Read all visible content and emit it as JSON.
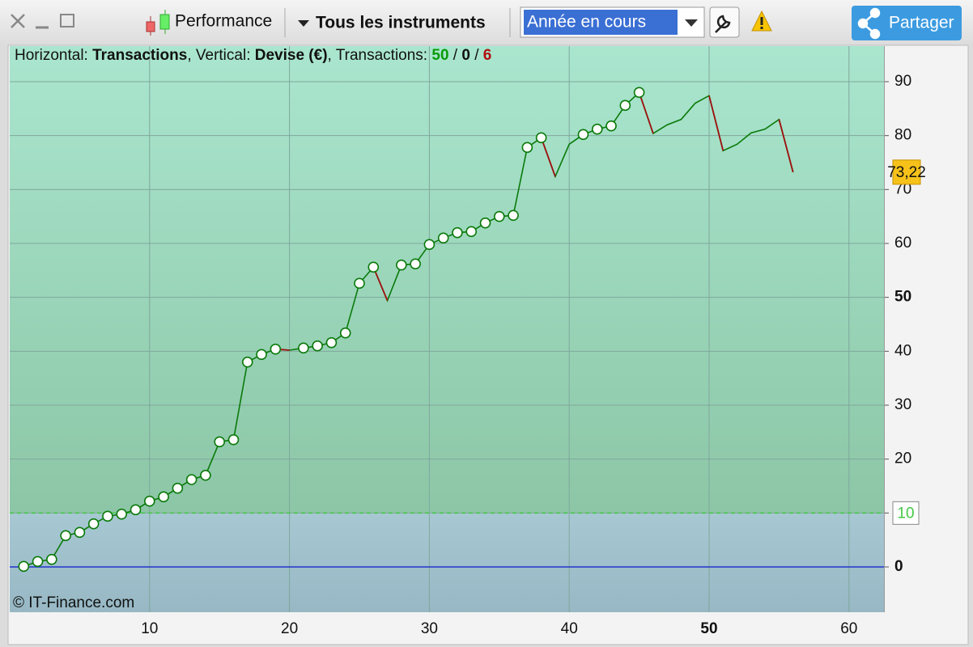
{
  "toolbar": {
    "performance": "Performance",
    "instruments": "Tous les instruments",
    "period": "Année en cours",
    "share": "Partager"
  },
  "chart_data": {
    "type": "line",
    "header": {
      "h_prefix": "Horizontal: ",
      "h_value": "Transactions",
      "v_prefix": ", Vertical: ",
      "v_value": "Devise (€)",
      "t_prefix": ", Transactions: ",
      "counts": [
        50,
        0,
        6
      ],
      "sep": " / "
    },
    "watermark": "© IT-Finance.com",
    "x": [
      1,
      2,
      3,
      4,
      5,
      6,
      7,
      8,
      9,
      10,
      11,
      12,
      13,
      14,
      15,
      16,
      17,
      18,
      19,
      20,
      21,
      22,
      23,
      24,
      25,
      26,
      27,
      28,
      29,
      30,
      31,
      32,
      33,
      34,
      35,
      36,
      37,
      38,
      39,
      40,
      41,
      42,
      43,
      44,
      45,
      46,
      47,
      48,
      49,
      50,
      51,
      52,
      53,
      54,
      55,
      56
    ],
    "values": [
      0.1,
      1.0,
      1.4,
      5.8,
      6.4,
      8.0,
      9.4,
      9.8,
      10.6,
      12.2,
      13.0,
      14.6,
      16.2,
      17.0,
      23.2,
      23.6,
      38.0,
      39.4,
      40.4,
      40.2,
      40.6,
      41.0,
      41.6,
      43.4,
      52.6,
      55.6,
      49.4,
      56.0,
      56.2,
      59.8,
      61.0,
      62.0,
      62.2,
      63.8,
      65.0,
      65.2,
      77.8,
      79.6,
      72.4,
      78.4,
      80.2,
      81.2,
      81.8,
      85.6,
      88.0,
      80.4,
      82.0,
      83.0,
      86.0,
      87.4,
      77.2,
      78.4,
      80.5,
      81.2,
      83.0,
      73.22
    ],
    "value_labels": [
      null,
      null,
      null,
      null,
      null,
      null,
      null,
      null,
      null,
      null,
      null,
      null,
      null,
      null,
      null,
      null,
      null,
      null,
      null,
      null,
      null,
      null,
      null,
      null,
      null,
      null,
      null,
      null,
      null,
      null,
      null,
      null,
      null,
      null,
      null,
      null,
      null,
      null,
      null,
      null,
      null,
      null,
      null,
      null,
      null,
      null,
      null,
      null,
      null,
      null,
      null,
      null,
      null,
      null,
      null,
      "73,22"
    ],
    "color": "#0a7a0a",
    "down_color": "#a01010",
    "threshold": 10,
    "threshold_color": "#44c844",
    "zero_line_color": "#2233cc",
    "xlim": [
      0,
      62.5
    ],
    "ylim": [
      -8.4,
      96.6
    ],
    "xticks": [
      10,
      20,
      30,
      40,
      50,
      60
    ],
    "yticks": [
      0,
      10,
      20,
      30,
      40,
      50,
      60,
      70,
      80,
      90
    ],
    "bold_xticks": [
      50
    ],
    "bold_yticks": [
      0,
      50
    ],
    "grid": true
  }
}
